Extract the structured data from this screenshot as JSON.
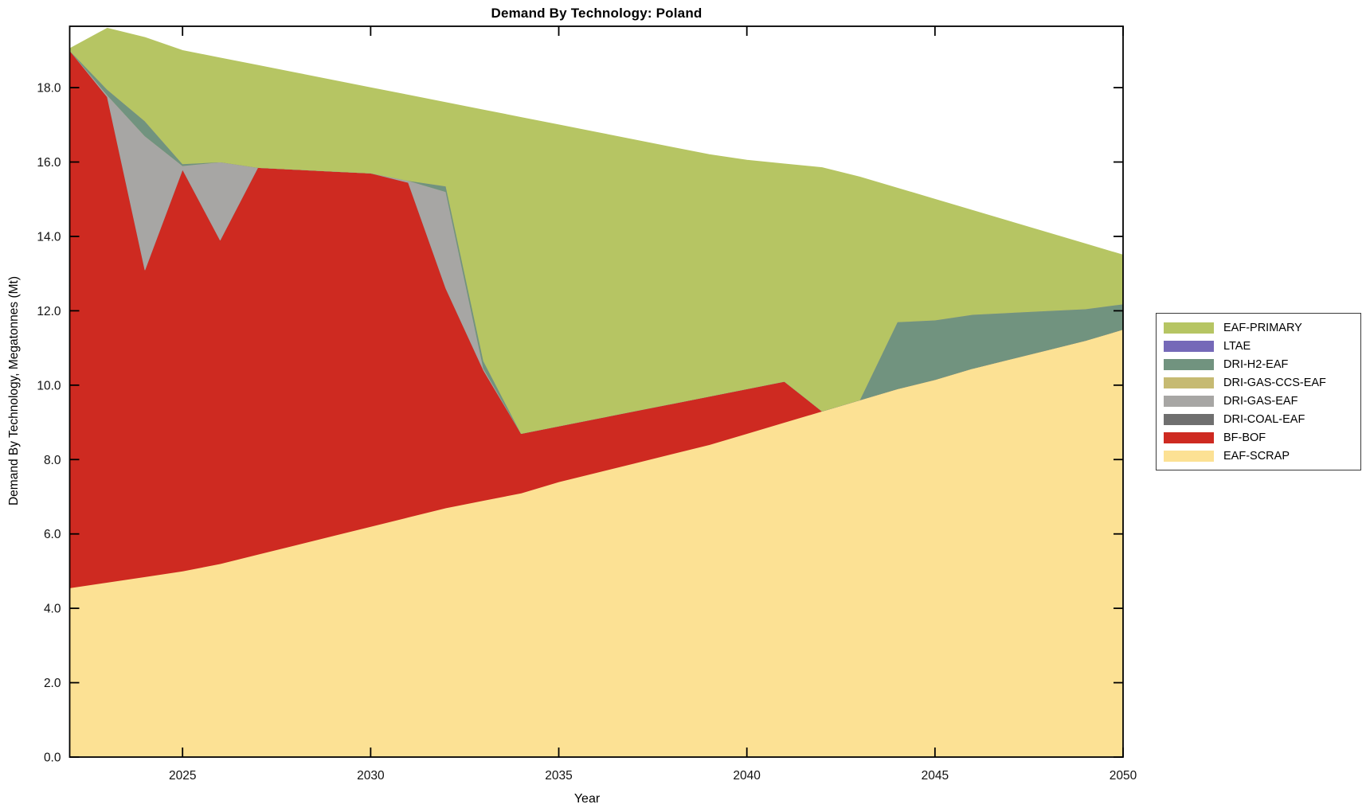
{
  "chart": {
    "title": "Demand By Technology: Poland",
    "xlabel": "Year",
    "ylabel": "Demand By Technology, Megatonnes (Mt)"
  },
  "axes": {
    "x_tick_labels": [
      "2025",
      "2030",
      "2035",
      "2040",
      "2045",
      "2050"
    ],
    "x_tick_values": [
      2025,
      2030,
      2035,
      2040,
      2045,
      2050
    ],
    "y_tick_labels": [
      "0.0",
      "2.0",
      "4.0",
      "6.0",
      "8.0",
      "10.0",
      "12.0",
      "14.0",
      "16.0",
      "18.0"
    ],
    "y_tick_values": [
      0,
      2,
      4,
      6,
      8,
      10,
      12,
      14,
      16,
      18
    ],
    "x_range": [
      2022,
      2050
    ],
    "y_range": [
      0,
      19.65
    ],
    "grid": false,
    "box": true,
    "tick_direction": "in"
  },
  "legend": {
    "position": "right-outside",
    "items": [
      {
        "label": "EAF-PRIMARY",
        "color": "#b6c563"
      },
      {
        "label": "LTAE",
        "color": "#7569b8"
      },
      {
        "label": "DRI-H2-EAF",
        "color": "#71937f"
      },
      {
        "label": "DRI-GAS-CCS-EAF",
        "color": "#c6ba72"
      },
      {
        "label": "DRI-GAS-EAF",
        "color": "#a7a6a4"
      },
      {
        "label": "DRI-COAL-EAF",
        "color": "#6f6f6f"
      },
      {
        "label": "BF-BOF",
        "color": "#ce2a21"
      },
      {
        "label": "EAF-SCRAP",
        "color": "#fce194"
      }
    ]
  },
  "chart_data": {
    "type": "area",
    "stacked": true,
    "title": "Demand By Technology: Poland",
    "xlabel": "Year",
    "ylabel": "Demand By Technology, Megatonnes (Mt)",
    "ylim": [
      0,
      19.65
    ],
    "grid": false,
    "legend_position": "right-outside",
    "x": [
      2022,
      2023,
      2024,
      2025,
      2026,
      2027,
      2028,
      2029,
      2030,
      2031,
      2032,
      2033,
      2034,
      2035,
      2036,
      2037,
      2038,
      2039,
      2040,
      2041,
      2042,
      2043,
      2044,
      2045,
      2046,
      2047,
      2048,
      2049,
      2050
    ],
    "series_order": "bottom-to-top",
    "series": [
      {
        "name": "EAF-SCRAP",
        "color": "#fce194",
        "values": [
          4.55,
          4.7,
          4.85,
          5.0,
          5.2,
          5.45,
          5.7,
          5.95,
          6.2,
          6.45,
          6.7,
          6.9,
          7.1,
          7.4,
          7.65,
          7.9,
          8.15,
          8.4,
          8.7,
          9.0,
          9.3,
          9.6,
          9.9,
          10.15,
          10.45,
          10.7,
          10.95,
          11.2,
          11.5
        ]
      },
      {
        "name": "BF-BOF",
        "color": "#ce2a21",
        "values": [
          14.45,
          13.05,
          8.25,
          10.8,
          8.7,
          10.4,
          10.1,
          9.8,
          9.5,
          9.0,
          5.9,
          3.5,
          1.6,
          1.5,
          1.45,
          1.4,
          1.35,
          1.3,
          1.2,
          1.1,
          0,
          0,
          0,
          0,
          0,
          0,
          0,
          0,
          0
        ]
      },
      {
        "name": "DRI-COAL-EAF",
        "color": "#6f6f6f",
        "values": [
          0,
          0,
          0,
          0,
          0,
          0,
          0,
          0,
          0,
          0,
          0,
          0,
          0,
          0,
          0,
          0,
          0,
          0,
          0,
          0,
          0,
          0,
          0,
          0,
          0,
          0,
          0,
          0,
          0
        ]
      },
      {
        "name": "DRI-GAS-EAF",
        "color": "#a7a6a4",
        "values": [
          0,
          0.05,
          3.6,
          0.1,
          2.1,
          0,
          0,
          0,
          0,
          0.05,
          2.6,
          0.05,
          0,
          0,
          0,
          0,
          0,
          0,
          0,
          0,
          0,
          0,
          0,
          0,
          0,
          0,
          0,
          0,
          0
        ]
      },
      {
        "name": "DRI-GAS-CCS-EAF",
        "color": "#c6ba72",
        "values": [
          0,
          0,
          0,
          0,
          0,
          0,
          0,
          0,
          0,
          0,
          0,
          0,
          0,
          0,
          0,
          0,
          0,
          0,
          0,
          0,
          0,
          0,
          0,
          0,
          0,
          0,
          0,
          0,
          0
        ]
      },
      {
        "name": "DRI-H2-EAF",
        "color": "#71937f",
        "values": [
          0,
          0.15,
          0.4,
          0.05,
          0,
          0,
          0,
          0,
          0,
          0,
          0.15,
          0.2,
          0,
          0,
          0,
          0,
          0,
          0,
          0,
          0,
          0,
          0,
          1.8,
          1.6,
          1.45,
          1.25,
          1.05,
          0.85,
          0.68
        ]
      },
      {
        "name": "LTAE",
        "color": "#7569b8",
        "values": [
          0,
          0,
          0,
          0,
          0,
          0,
          0,
          0,
          0,
          0,
          0,
          0,
          0,
          0,
          0,
          0,
          0,
          0,
          0,
          0,
          0,
          0,
          0,
          0,
          0,
          0,
          0,
          0,
          0
        ]
      },
      {
        "name": "EAF-PRIMARY",
        "color": "#b6c563",
        "values": [
          0.05,
          1.65,
          2.25,
          3.05,
          2.8,
          2.75,
          2.6,
          2.45,
          2.3,
          2.3,
          2.25,
          6.75,
          8.5,
          8.1,
          7.7,
          7.3,
          6.9,
          6.5,
          6.15,
          5.85,
          6.55,
          6.0,
          3.6,
          3.25,
          2.8,
          2.45,
          2.1,
          1.75,
          1.32
        ]
      }
    ]
  }
}
